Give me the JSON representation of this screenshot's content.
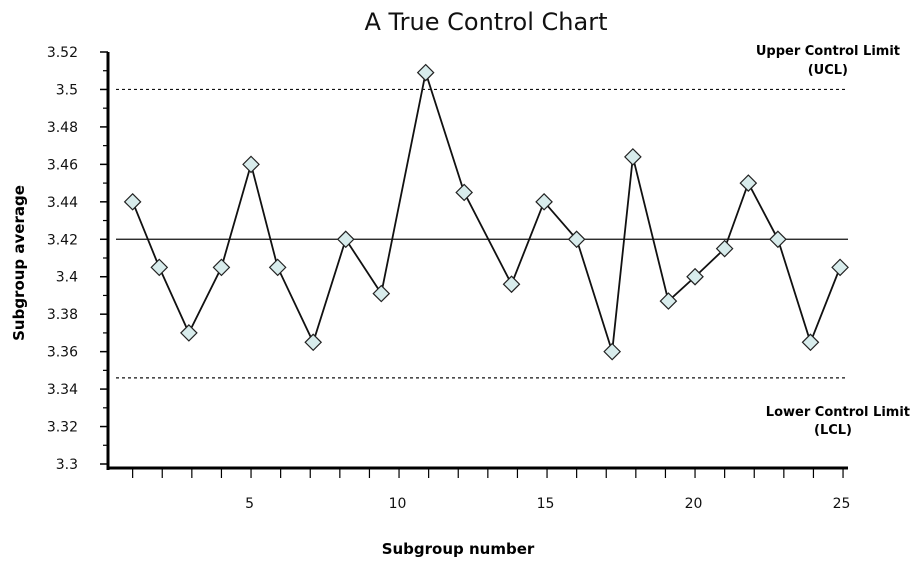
{
  "chart_data": {
    "type": "line",
    "title": "A True Control Chart",
    "xlabel": "Subgroup number",
    "ylabel": "Subgroup average",
    "xlim": [
      0.5,
      25
    ],
    "ylim": [
      3.3,
      3.52
    ],
    "x_ticks": [
      5,
      10,
      15,
      20,
      25
    ],
    "y_ticks": [
      3.3,
      3.32,
      3.34,
      3.36,
      3.38,
      3.4,
      3.42,
      3.44,
      3.46,
      3.48,
      3.5,
      3.52
    ],
    "y_tick_labels": [
      "3.3",
      "3.32",
      "3.34",
      "3.36",
      "3.38",
      "3.4",
      "3.42",
      "3.44",
      "3.46",
      "3.48",
      "3.5",
      "3.52"
    ],
    "x_tick_labels": [
      "5",
      "10",
      "15",
      "20",
      "25"
    ],
    "grid": false,
    "center_line": 3.42,
    "ucl": {
      "value": 3.5,
      "label_line1": "Upper Control Limit",
      "label_line2": "(UCL)"
    },
    "lcl": {
      "value": 3.346,
      "label_line1": "Lower Control Limit",
      "label_line2": "(LCL)"
    },
    "series": [
      {
        "points": [
          [
            1.4,
            3.44
          ],
          [
            2.3,
            3.405
          ],
          [
            3.3,
            3.37
          ],
          [
            4.4,
            3.405
          ],
          [
            5.4,
            3.46
          ],
          [
            6.3,
            3.405
          ],
          [
            7.5,
            3.365
          ],
          [
            8.6,
            3.42
          ],
          [
            9.8,
            3.391
          ],
          [
            11.3,
            3.509
          ],
          [
            12.6,
            3.445
          ],
          [
            14.2,
            3.396
          ],
          [
            15.3,
            3.44
          ],
          [
            16.4,
            3.42
          ],
          [
            17.6,
            3.36
          ],
          [
            18.3,
            3.464
          ],
          [
            19.5,
            3.387
          ],
          [
            20.4,
            3.4
          ],
          [
            21.4,
            3.415
          ],
          [
            22.2,
            3.45
          ],
          [
            23.2,
            3.42
          ],
          [
            24.3,
            3.365
          ],
          [
            25.3,
            3.405
          ]
        ]
      }
    ],
    "colors": {
      "line": "#111111",
      "marker_fill": "#d8ecec",
      "marker_stroke": "#222222",
      "axis": "#000000"
    }
  }
}
